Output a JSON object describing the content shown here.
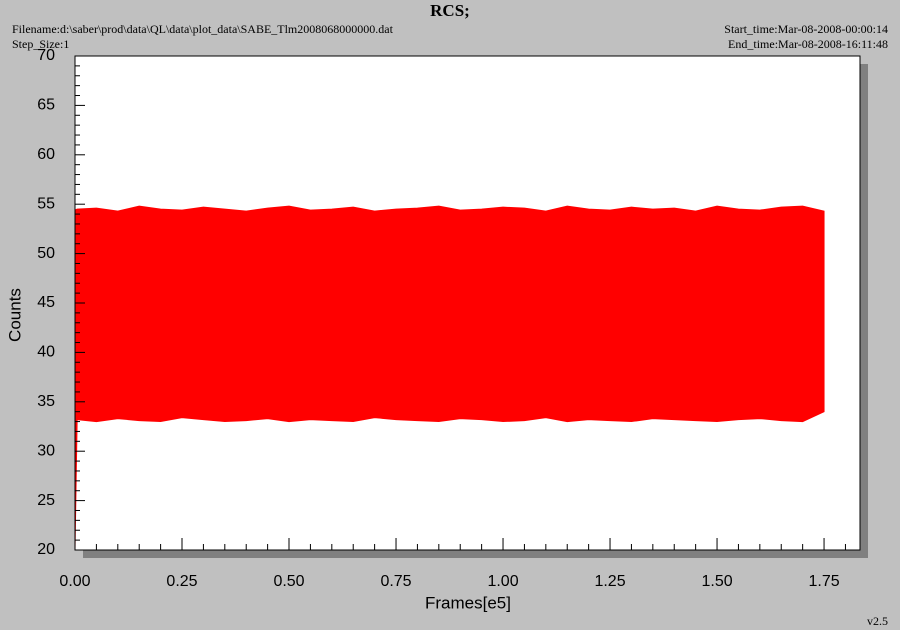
{
  "chart_data": {
    "type": "area",
    "title": "RCS;",
    "filename": "Filename:d:\\saber\\prod\\data\\QL\\data\\plot_data\\SABE_Tlm2008068000000.dat",
    "step_size": "Step_Size:1",
    "start_time": "Start_time:Mar-08-2008-00:00:14",
    "end_time": "End_time:Mar-08-2008-16:11:48",
    "version": "v2.5",
    "xlabel": "Frames[e5]",
    "ylabel": "Counts",
    "color": "#ff0000",
    "x": [
      0,
      0.005,
      0.05,
      0.1,
      0.15,
      0.2,
      0.25,
      0.3,
      0.35,
      0.4,
      0.45,
      0.5,
      0.55,
      0.6,
      0.65,
      0.7,
      0.75,
      0.8,
      0.85,
      0.9,
      0.95,
      1.0,
      1.05,
      1.1,
      1.15,
      1.2,
      1.25,
      1.3,
      1.35,
      1.4,
      1.45,
      1.5,
      1.55,
      1.6,
      1.65,
      1.7,
      1.75
    ],
    "upper": [
      54.4,
      54.5,
      54.6,
      54.3,
      54.8,
      54.5,
      54.4,
      54.7,
      54.5,
      54.3,
      54.6,
      54.8,
      54.4,
      54.5,
      54.7,
      54.3,
      54.5,
      54.6,
      54.8,
      54.4,
      54.5,
      54.7,
      54.6,
      54.3,
      54.8,
      54.5,
      54.4,
      54.7,
      54.5,
      54.6,
      54.3,
      54.8,
      54.5,
      54.4,
      54.7,
      54.8,
      54.3
    ],
    "lower": [
      20,
      33.2,
      33.0,
      33.3,
      33.1,
      33.0,
      33.4,
      33.2,
      33.0,
      33.1,
      33.3,
      33.0,
      33.2,
      33.1,
      33.0,
      33.4,
      33.2,
      33.1,
      33.0,
      33.3,
      33.2,
      33.0,
      33.1,
      33.4,
      33.0,
      33.2,
      33.1,
      33.0,
      33.3,
      33.2,
      33.1,
      33.0,
      33.2,
      33.3,
      33.1,
      33.0,
      34.0
    ],
    "xlim": [
      0,
      1.834
    ],
    "ylim": [
      20,
      70
    ],
    "xticks": [
      {
        "value": 0,
        "label": "0.00"
      },
      {
        "value": 0.25,
        "label": "0.25"
      },
      {
        "value": 0.5,
        "label": "0.50"
      },
      {
        "value": 0.75,
        "label": "0.75"
      },
      {
        "value": 1,
        "label": "1.00"
      },
      {
        "value": 1.25,
        "label": "1.25"
      },
      {
        "value": 1.5,
        "label": "1.50"
      },
      {
        "value": 1.75,
        "label": "1.75"
      }
    ],
    "yticks": [
      20,
      25,
      30,
      35,
      40,
      45,
      50,
      55,
      60,
      65,
      70
    ],
    "xminorticks": [
      0.05,
      0.1,
      0.15,
      0.2,
      0.3,
      0.35,
      0.4,
      0.45,
      0.55,
      0.6,
      0.65,
      0.7,
      0.8,
      0.85,
      0.9,
      0.95,
      1.05,
      1.1,
      1.15,
      1.2,
      1.3,
      1.35,
      1.4,
      1.45,
      1.55,
      1.6,
      1.65,
      1.7,
      1.8
    ],
    "yminorticks": [
      21,
      22,
      23,
      24,
      26,
      27,
      28,
      29,
      31,
      32,
      33,
      34,
      36,
      37,
      38,
      39,
      41,
      42,
      43,
      44,
      46,
      47,
      48,
      49,
      51,
      52,
      53,
      54,
      56,
      57,
      58,
      59,
      61,
      62,
      63,
      64,
      66,
      67,
      68,
      69
    ],
    "grid": false
  }
}
